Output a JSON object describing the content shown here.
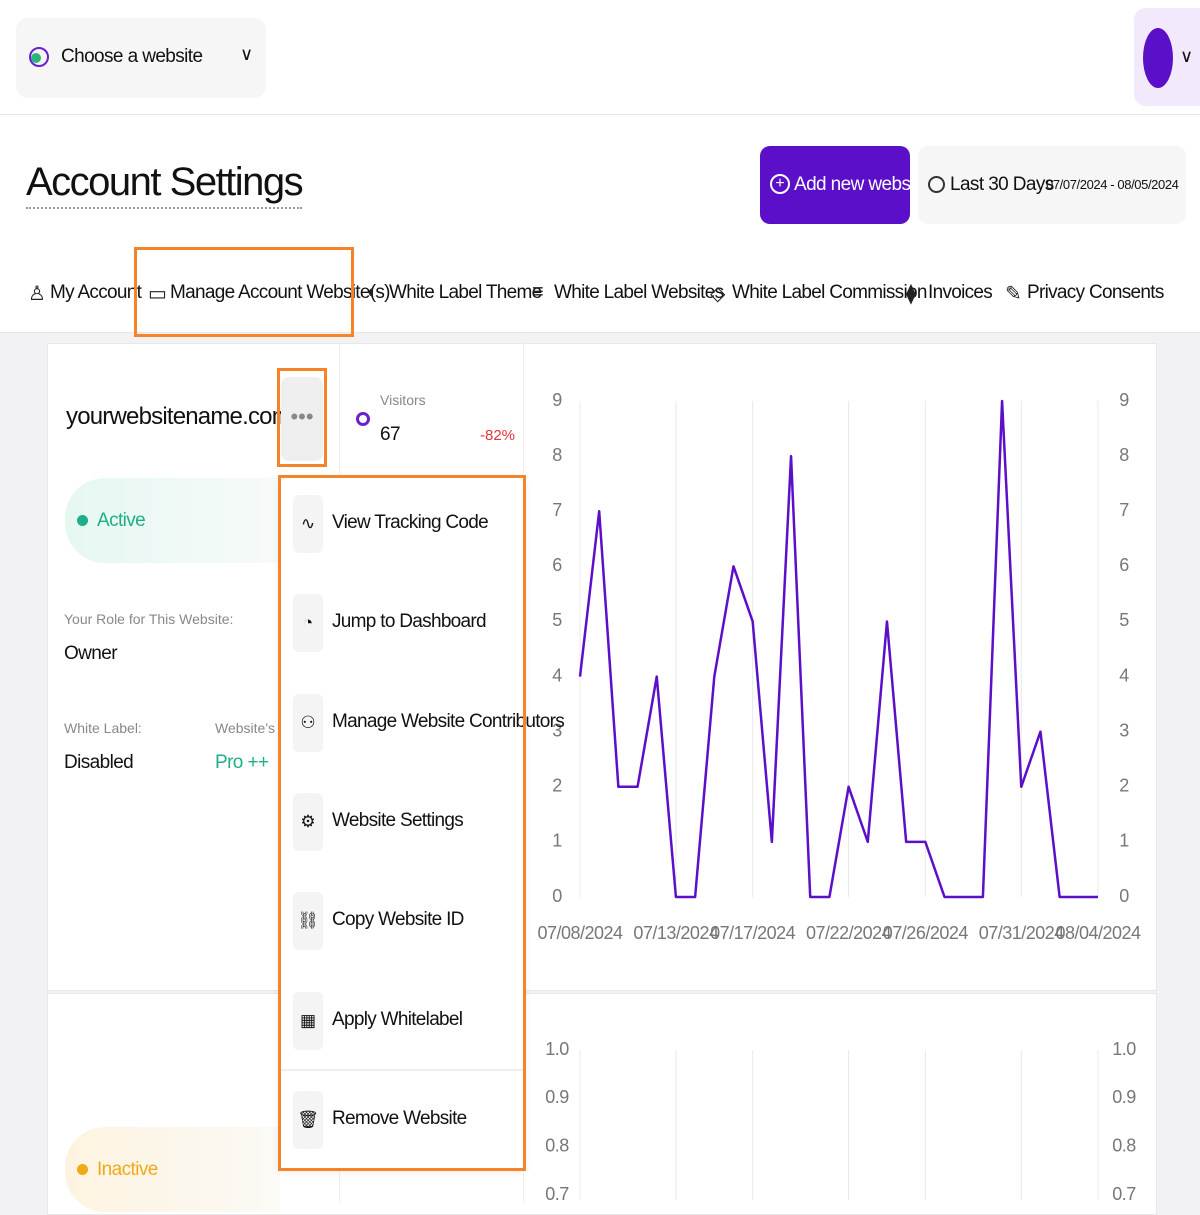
{
  "header": {
    "site_selector": "Choose a website"
  },
  "page": {
    "title": "Account Settings",
    "add_button": "Add new website",
    "date_label": "Last 30 Days",
    "date_range": "07/07/2024 - 08/05/2024"
  },
  "tabs": [
    "My Account",
    "Manage Account Website(s)",
    "White Label Theme",
    "White Label Websites",
    "White Label Commission",
    "Invoices",
    "Privacy Consents"
  ],
  "website": {
    "name": "yourwebsitename.com",
    "status": "Active",
    "role_label": "Your Role for This Website:",
    "role": "Owner",
    "white_label_label": "White Label:",
    "white_label": "Disabled",
    "plan_label": "Website's Pri",
    "plan": "Pro ++",
    "visitors_label": "Visitors",
    "visitors": 67,
    "visitors_change": "-82%"
  },
  "menu": [
    "View Tracking Code",
    "Jump to Dashboard",
    "Manage Website Contributors",
    "Website Settings",
    "Copy Website ID",
    "Apply Whitelabel",
    "Remove Website"
  ],
  "website2": {
    "status": "Inactive"
  },
  "chart_data": [
    {
      "type": "line",
      "categories": [
        "07/08/2024",
        null,
        null,
        null,
        null,
        "07/13/2024",
        null,
        null,
        null,
        "07/17/2024",
        null,
        null,
        null,
        null,
        "07/22/2024",
        null,
        null,
        null,
        "07/26/2024",
        null,
        null,
        null,
        null,
        "07/31/2024",
        null,
        null,
        null,
        "08/04/2024"
      ],
      "series": [
        {
          "name": "Visitors",
          "color": "#5b0fc8",
          "values": [
            4,
            7,
            2,
            2,
            4,
            0,
            0,
            4,
            6,
            5,
            1,
            8,
            0,
            0,
            2,
            1,
            5,
            1,
            1,
            0,
            0,
            0,
            9,
            2,
            3,
            0,
            0,
            0
          ]
        }
      ],
      "ylim": [
        0,
        9
      ],
      "yticks": [
        0,
        1,
        2,
        3,
        4,
        5,
        6,
        7,
        8,
        9
      ],
      "y2lim": [
        0,
        9
      ],
      "y2ticks": [
        0,
        1,
        2,
        3,
        4,
        5,
        6,
        7,
        8,
        9
      ],
      "grid": true
    },
    {
      "type": "line",
      "ylim": [
        0.7,
        1
      ],
      "yticks": [
        {
          "value": 1,
          "label": "1.0"
        },
        {
          "value": 0.9,
          "label": "0.9"
        },
        {
          "value": 0.8,
          "label": "0.8"
        },
        {
          "value": 0.7,
          "label": "0.7"
        }
      ],
      "y2lim": [
        0.7,
        1
      ],
      "y2ticks": [
        {
          "value": 1,
          "label": "1.0"
        },
        {
          "value": 0.9,
          "label": "0.9"
        },
        {
          "value": 0.8,
          "label": "0.8"
        },
        {
          "value": 0.7,
          "label": "0.7"
        }
      ],
      "grid": true
    }
  ]
}
